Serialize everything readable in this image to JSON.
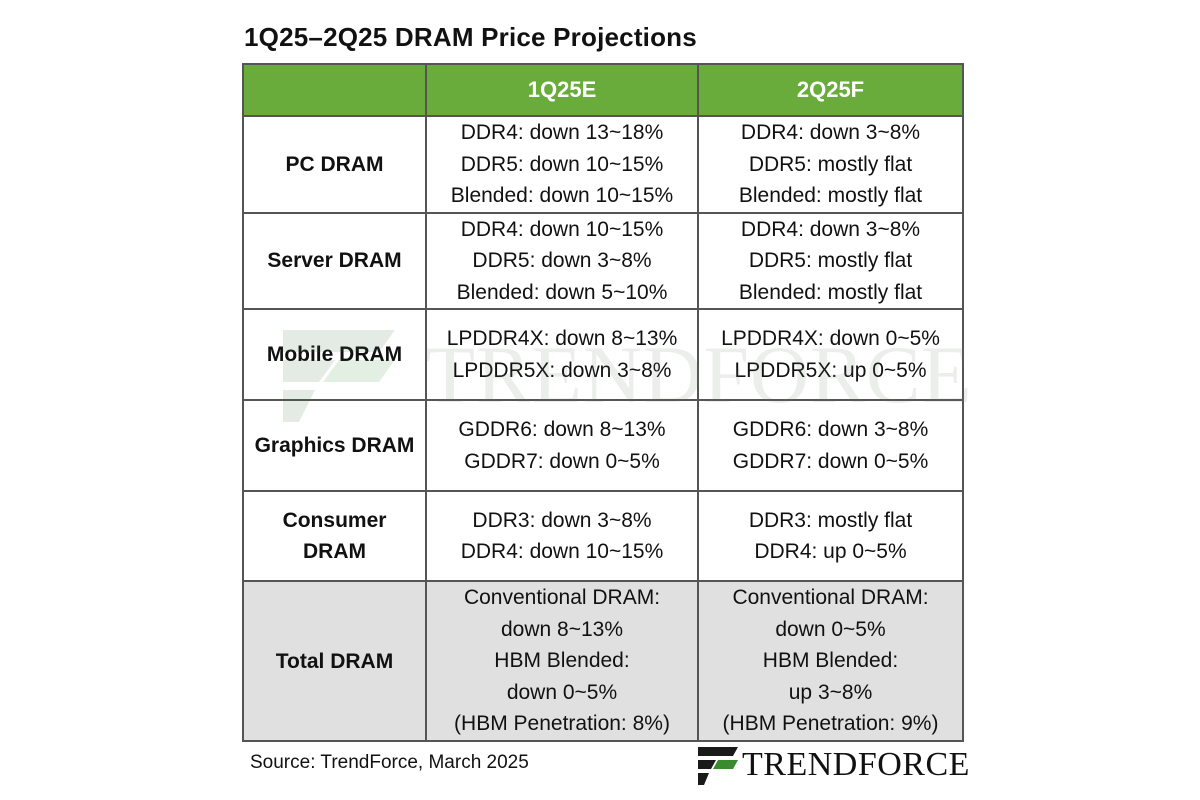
{
  "title": "1Q25–2Q25 DRAM Price Projections",
  "colors": {
    "header_green": "#6aac3b",
    "total_gray": "#e0e0e0",
    "logo_green": "#3a8a2e"
  },
  "table": {
    "columns": [
      "",
      "1Q25E",
      "2Q25F"
    ],
    "rows": [
      {
        "category": [
          "PC DRAM"
        ],
        "q1": [
          "DDR4: down 13~18%",
          "DDR5: down 10~15%",
          "Blended: down 10~15%"
        ],
        "q2": [
          "DDR4: down 3~8%",
          "DDR5: mostly flat",
          "Blended: mostly flat"
        ]
      },
      {
        "category": [
          "Server DRAM"
        ],
        "q1": [
          "DDR4: down 10~15%",
          "DDR5: down 3~8%",
          "Blended: down 5~10%"
        ],
        "q2": [
          "DDR4: down 3~8%",
          "DDR5: mostly flat",
          "Blended: mostly flat"
        ]
      },
      {
        "category": [
          "Mobile DRAM"
        ],
        "q1": [
          "LPDDR4X: down 8~13%",
          "LPDDR5X: down 3~8%"
        ],
        "q2": [
          "LPDDR4X: down 0~5%",
          "LPDDR5X: up 0~5%"
        ]
      },
      {
        "category": [
          "Graphics DRAM"
        ],
        "q1": [
          "GDDR6: down 8~13%",
          "GDDR7: down 0~5%"
        ],
        "q2": [
          "GDDR6: down 3~8%",
          "GDDR7: down 0~5%"
        ]
      },
      {
        "category": [
          "Consumer",
          "DRAM"
        ],
        "q1": [
          "DDR3: down 3~8%",
          "DDR4: down 10~15%"
        ],
        "q2": [
          "DDR3: mostly flat",
          "DDR4: up 0~5%"
        ]
      },
      {
        "category": [
          "Total DRAM"
        ],
        "q1": [
          "Conventional DRAM:",
          "down 8~13%",
          "HBM Blended:",
          "down 0~5%",
          "(HBM Penetration: 8%)"
        ],
        "q2": [
          "Conventional DRAM:",
          "down 0~5%",
          "HBM Blended:",
          "up 3~8%",
          "(HBM Penetration: 9%)"
        ]
      }
    ]
  },
  "source": "Source: TrendForce, March 2025",
  "brand": {
    "name": "TRENDFORCE",
    "logo_icon": "trendforce-logo-icon",
    "watermark": "TRENDFORCE"
  }
}
